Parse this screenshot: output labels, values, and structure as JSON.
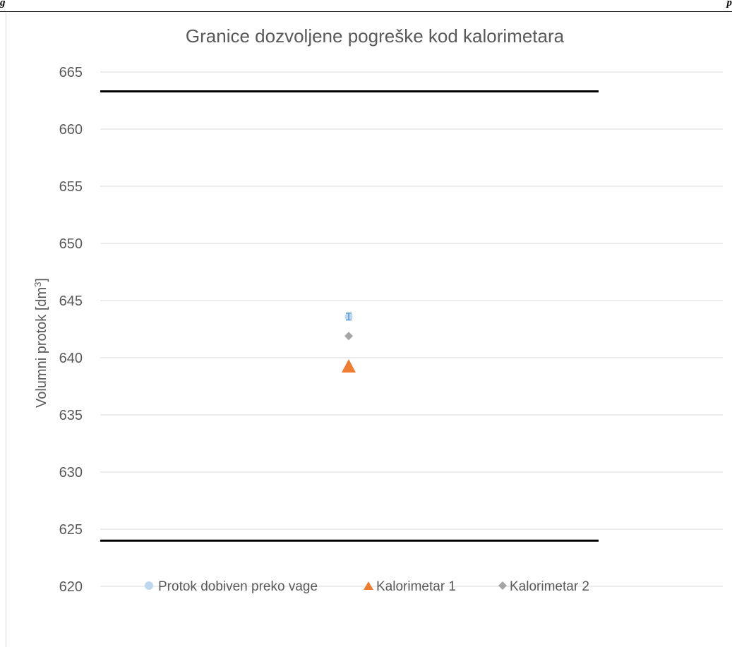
{
  "header": {
    "left": "g",
    "right": "p"
  },
  "chart_data": {
    "type": "scatter",
    "title": "Granice dozvoljene pogreške kod kalorimetara",
    "ylabel_main": "Volumni protok [dm",
    "ylabel_sup": "3",
    "ylabel_end": "]",
    "ylim": [
      620,
      665
    ],
    "yticks": [
      620,
      625,
      630,
      635,
      640,
      645,
      650,
      655,
      660,
      665
    ],
    "grid": true,
    "legend_position": "bottom",
    "limit_lines": [
      {
        "value": 663.3,
        "color": "#000000"
      },
      {
        "value": 624.0,
        "color": "#000000"
      }
    ],
    "series": [
      {
        "name": "Protok dobiven preko vage",
        "marker": "circle",
        "color": "#bdd7ee",
        "y": 643.6,
        "error": 0.3
      },
      {
        "name": "Kalorimetar 1",
        "marker": "triangle",
        "color": "#ed7d31",
        "y": 639.2
      },
      {
        "name": "Kalorimetar 2",
        "marker": "diamond",
        "color": "#a5a5a5",
        "y": 641.9
      }
    ]
  }
}
